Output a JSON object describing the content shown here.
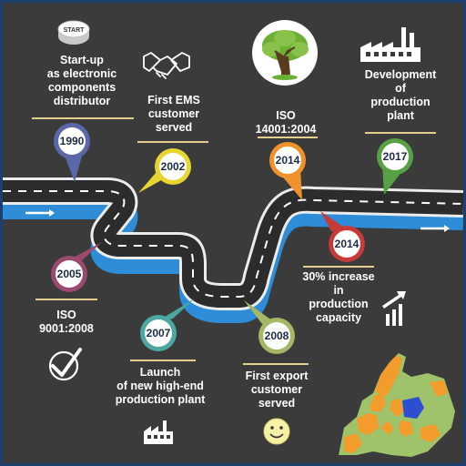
{
  "milestones": [
    {
      "year": "1990",
      "label": "Start-up\nas electronic\ncomponents\ndistributor",
      "color": "#5b68a8"
    },
    {
      "year": "2002",
      "label": "First EMS\ncustomer\nserved",
      "color": "#e9d530"
    },
    {
      "year": "2005",
      "label": "ISO\n9001:2008",
      "color": "#9a4a6e"
    },
    {
      "year": "2007",
      "label": "Launch\nof new high-end\nproduction plant",
      "color": "#4aa8a0"
    },
    {
      "year": "2008",
      "label": "First export\ncustomer\nserved",
      "color": "#a4b866"
    },
    {
      "year": "2014",
      "label": "ISO\n14001:2004",
      "color": "#f0922b"
    },
    {
      "year": "2014",
      "label": "30% increase\nin\nproduction\ncapacity",
      "color": "#c73a3a"
    },
    {
      "year": "2017",
      "label": "Development\nof\nproduction\nplant",
      "color": "#58a044"
    }
  ],
  "start_button_text": "START",
  "colors": {
    "background": "#3b3b3b",
    "road": "#2c2c2c",
    "road_edge": "#ececec",
    "underline": "#e5cf90",
    "frame": "#1c3f6e",
    "map_highlight": "#f39c2b",
    "map_focus": "#2b4fd0"
  },
  "icons": [
    "start-button-icon",
    "handshake-icon",
    "tree-icon",
    "factory-icon",
    "checkmark-icon",
    "bar-chart-icon",
    "smiley-icon",
    "europe-map-icon"
  ]
}
